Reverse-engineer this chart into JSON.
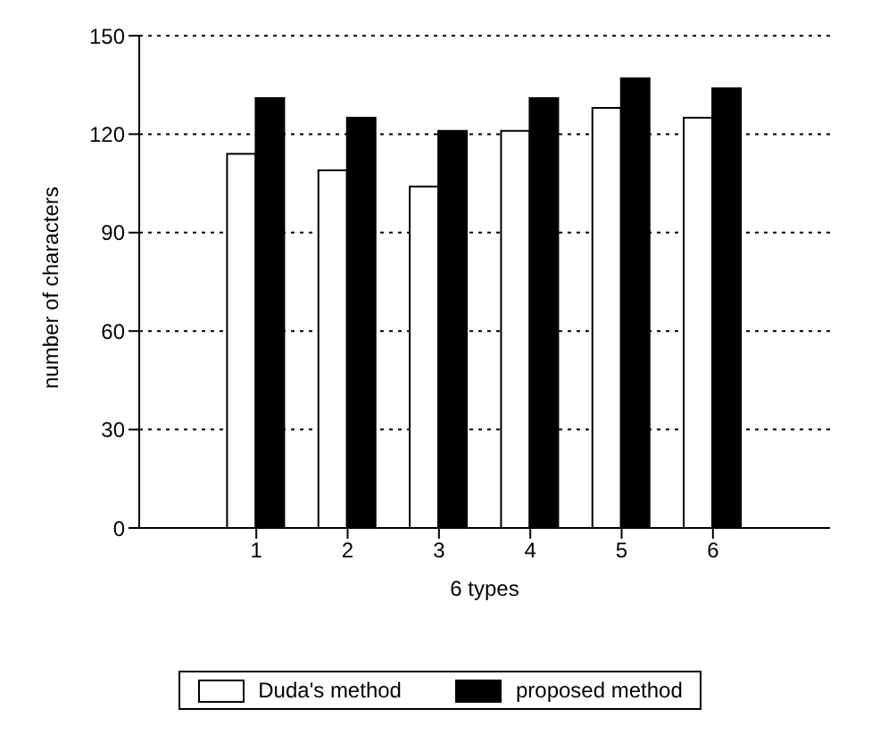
{
  "chart_data": {
    "type": "bar",
    "xlabel": "6 types",
    "ylabel": "number of characters",
    "categories": [
      "1",
      "2",
      "3",
      "4",
      "5",
      "6"
    ],
    "series": [
      {
        "name": "Duda's method",
        "color": "#ffffff",
        "values": [
          114,
          109,
          104,
          121,
          128,
          125
        ]
      },
      {
        "name": "proposed method",
        "color": "#000000",
        "values": [
          131,
          125,
          121,
          131,
          137,
          134
        ]
      }
    ],
    "ylim": [
      0,
      150
    ],
    "yticks": [
      0,
      30,
      60,
      90,
      120,
      150
    ],
    "grid": "y",
    "legend": "bottom"
  }
}
